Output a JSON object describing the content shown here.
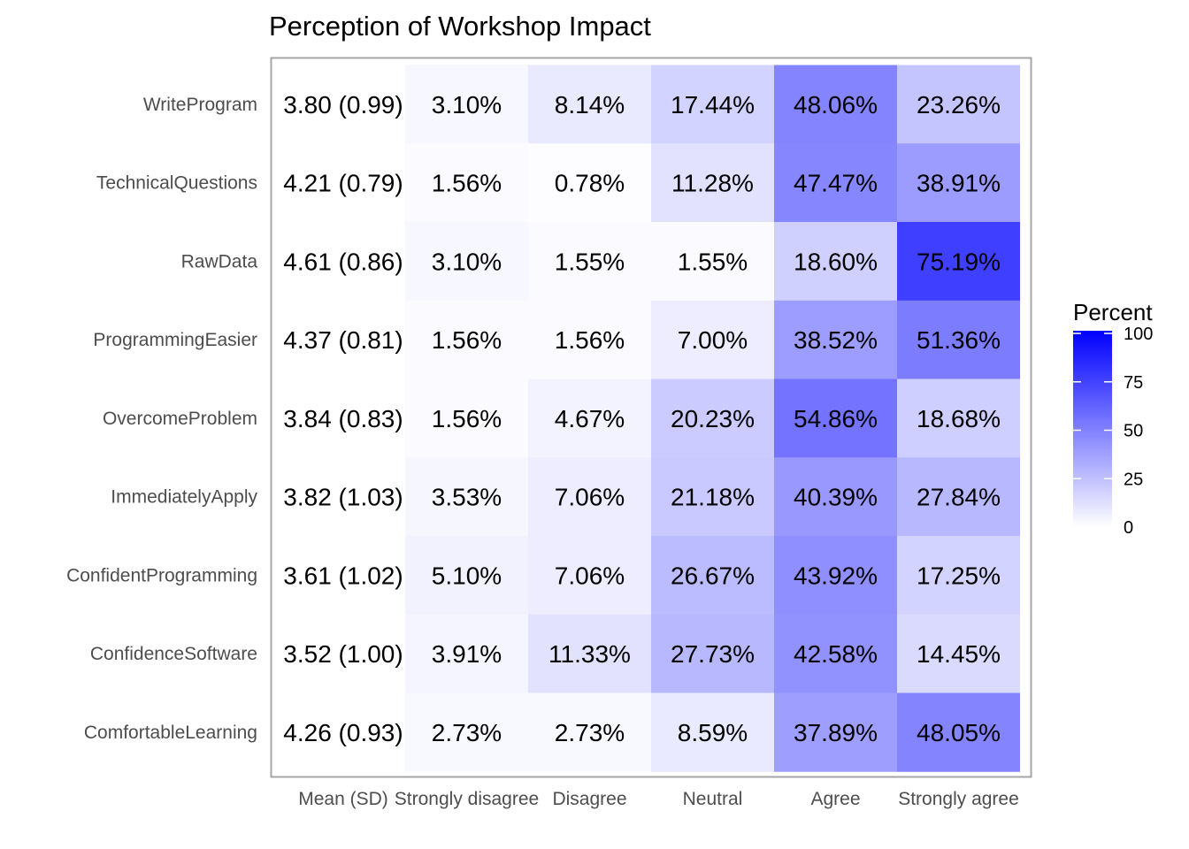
{
  "chart_data": {
    "type": "heatmap",
    "title": "Perception of Workshop Impact",
    "xlabel": "",
    "ylabel": "",
    "mean_column_label": "Mean (SD)",
    "columns": [
      "Strongly disagree",
      "Disagree",
      "Neutral",
      "Agree",
      "Strongly agree"
    ],
    "rows": [
      {
        "label": "WriteProgram",
        "mean_sd": "3.80 (0.99)",
        "values": [
          3.1,
          8.14,
          17.44,
          48.06,
          23.26
        ]
      },
      {
        "label": "TechnicalQuestions",
        "mean_sd": "4.21 (0.79)",
        "values": [
          1.56,
          0.78,
          11.28,
          47.47,
          38.91
        ]
      },
      {
        "label": "RawData",
        "mean_sd": "4.61 (0.86)",
        "values": [
          3.1,
          1.55,
          1.55,
          18.6,
          75.19
        ]
      },
      {
        "label": "ProgrammingEasier",
        "mean_sd": "4.37 (0.81)",
        "values": [
          1.56,
          1.56,
          7.0,
          38.52,
          51.36
        ]
      },
      {
        "label": "OvercomeProblem",
        "mean_sd": "3.84 (0.83)",
        "values": [
          1.56,
          4.67,
          20.23,
          54.86,
          18.68
        ]
      },
      {
        "label": "ImmediatelyApply",
        "mean_sd": "3.82 (1.03)",
        "values": [
          3.53,
          7.06,
          21.18,
          40.39,
          27.84
        ]
      },
      {
        "label": "ConfidentProgramming",
        "mean_sd": "3.61 (1.02)",
        "values": [
          5.1,
          7.06,
          26.67,
          43.92,
          17.25
        ]
      },
      {
        "label": "ConfidenceSoftware",
        "mean_sd": "3.52 (1.00)",
        "values": [
          3.91,
          11.33,
          27.73,
          42.58,
          14.45
        ]
      },
      {
        "label": "ComfortableLearning",
        "mean_sd": "4.26 (0.93)",
        "values": [
          2.73,
          2.73,
          8.59,
          37.89,
          48.05
        ]
      }
    ],
    "value_suffix": "%",
    "legend": {
      "title": "Percent",
      "ticks": [
        0,
        25,
        50,
        75,
        100
      ],
      "range": [
        0,
        100
      ],
      "low_color": "#ffffff",
      "high_color": "#0000ff",
      "placement": "right"
    },
    "colors": {
      "panel_border": "#a6a6a6",
      "axis_text": "#4d4d4d",
      "cell_text": "#000000"
    }
  }
}
